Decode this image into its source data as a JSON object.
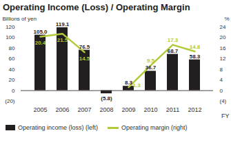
{
  "chart_data": {
    "type": "bar",
    "title": "Operating Income (Loss) / Operating Margin",
    "y_label": "Billions of yen",
    "y2_label": "%",
    "x_label": "FY",
    "categories": [
      "2005",
      "2006",
      "2007",
      "2008",
      "2009",
      "2010",
      "2011",
      "2012"
    ],
    "series": [
      {
        "name": "Operating income (loss) (left)",
        "type": "bar",
        "color": "#231f20",
        "values": [
          105.0,
          119.1,
          76.5,
          -5.8,
          8.3,
          36.7,
          68.7,
          58.3
        ],
        "value_labels": [
          "105.0",
          "119.1",
          "76.5",
          "(5.8)",
          "8.3",
          "36.7",
          "68.7",
          "58.3"
        ]
      },
      {
        "name": "Operating margin (right)",
        "type": "line",
        "axis": "y2",
        "color": "#b3c938",
        "values": [
          20.4,
          21.5,
          14.5,
          null,
          1.3,
          9.5,
          17.3,
          14.8
        ]
      }
    ],
    "ylim": [
      -20,
      120
    ],
    "yticks": [
      {
        "value": -20,
        "label": "(20)"
      },
      0,
      20,
      40,
      60,
      80,
      100,
      120
    ],
    "y2lim": [
      -4,
      24
    ],
    "y2ticks": [
      {
        "value": -4,
        "label": "(4)"
      },
      0,
      4,
      8,
      12,
      16,
      20,
      24
    ],
    "data_labels": true,
    "legend": "bottom"
  }
}
